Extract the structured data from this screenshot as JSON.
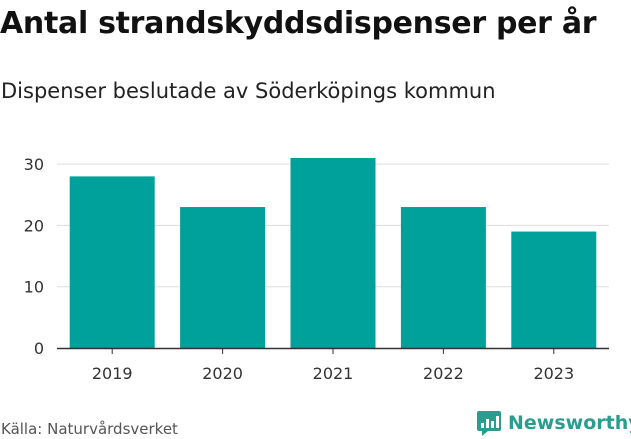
{
  "header": {
    "title": "Antal strandskyddsdispenser per år",
    "subtitle": "Dispenser beslutade av Söderköpings kommun"
  },
  "footer": {
    "source": "Källa: Naturvårdsverket",
    "brand": "Newsworthy"
  },
  "colors": {
    "bar": "#00a19a",
    "grid": "#dddddd",
    "axis": "#333333",
    "brand": "#2a9d8f"
  },
  "chart_data": {
    "type": "bar",
    "title": "Antal strandskyddsdispenser per år",
    "subtitle": "Dispenser beslutade av Söderköpings kommun",
    "categories": [
      "2019",
      "2020",
      "2021",
      "2022",
      "2023"
    ],
    "values": [
      28,
      23,
      31,
      23,
      19
    ],
    "xlabel": "",
    "ylabel": "",
    "ylim": [
      0,
      31
    ],
    "yticks": [
      0,
      10,
      20,
      30
    ],
    "grid": true,
    "legend": "none"
  }
}
